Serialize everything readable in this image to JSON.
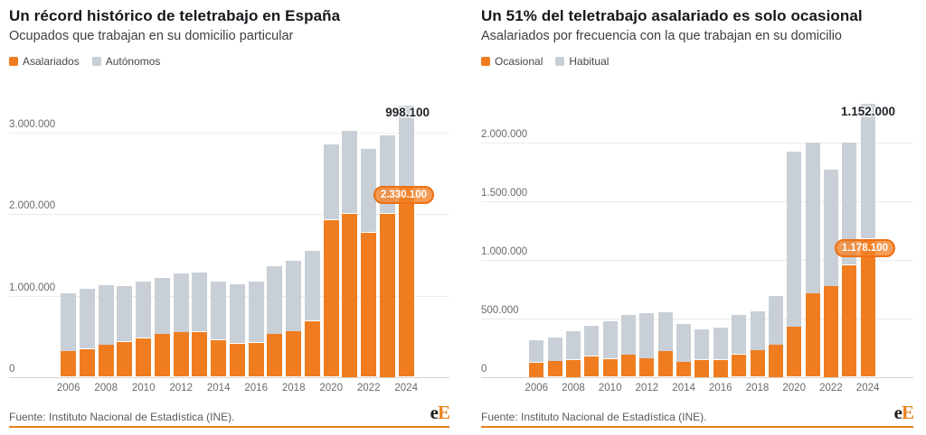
{
  "colors": {
    "orange": "#ef7d1f",
    "gray": "#c9cfd6",
    "annotation_dark": "#1f2229",
    "rule": "#e2811f",
    "logo_dark": "#1a1a1a",
    "logo_orange": "#e8821e"
  },
  "footer": {
    "source": "Fuente: Instituto Nacional de Estadística (INE).",
    "logo_first": "e",
    "logo_second": "E"
  },
  "chart_data": [
    {
      "type": "bar",
      "stacked": true,
      "title": "Un récord histórico de teletrabajo en España",
      "subtitle": "Ocupados que trabajan en su domicilio particular",
      "grid": true,
      "legend_position": "top",
      "categories": [
        2006,
        2007,
        2008,
        2009,
        2010,
        2011,
        2012,
        2013,
        2014,
        2015,
        2016,
        2017,
        2018,
        2019,
        2020,
        2021,
        2022,
        2023,
        2024
      ],
      "x_tick_labels": [
        "2006",
        "2008",
        "2010",
        "2012",
        "2014",
        "2016",
        "2018",
        "2020",
        "2022",
        "2024"
      ],
      "series": [
        {
          "name": "Asalariados",
          "color_key": "orange",
          "values": [
            320000,
            345000,
            395000,
            435000,
            480000,
            530000,
            550000,
            555000,
            455000,
            410000,
            420000,
            530000,
            560000,
            690000,
            1925000,
            2000000,
            1770000,
            2000000,
            2330100
          ]
        },
        {
          "name": "Autónomos",
          "color_key": "gray",
          "values": [
            710000,
            735000,
            735000,
            685000,
            690000,
            690000,
            720000,
            725000,
            715000,
            730000,
            750000,
            830000,
            870000,
            860000,
            930000,
            1020000,
            1030000,
            960000,
            998100
          ]
        }
      ],
      "y_ticks": [
        {
          "value": 0,
          "label": "0"
        },
        {
          "value": 1000000,
          "label": "1.000.000"
        },
        {
          "value": 2000000,
          "label": "2.000.000"
        },
        {
          "value": 3000000,
          "label": "3.000.000"
        }
      ],
      "ylim": [
        0,
        3400000
      ],
      "annotations": [
        {
          "text": "998.100",
          "series": "Autónomos",
          "year": 2024,
          "value": 998100,
          "style": "dark"
        },
        {
          "text": "2.330.100",
          "series": "Asalariados",
          "year": 2024,
          "value": 2330100,
          "style": "pill"
        }
      ]
    },
    {
      "type": "bar",
      "stacked": true,
      "title": "Un 51% del teletrabajo asalariado es solo ocasional",
      "subtitle": "Asalariados por frecuencia con la que trabajan en su domicilio",
      "grid": true,
      "legend_position": "top",
      "categories": [
        2006,
        2007,
        2008,
        2009,
        2010,
        2011,
        2012,
        2013,
        2014,
        2015,
        2016,
        2017,
        2018,
        2019,
        2020,
        2021,
        2022,
        2023,
        2024
      ],
      "x_tick_labels": [
        "2006",
        "2008",
        "2010",
        "2012",
        "2014",
        "2016",
        "2018",
        "2020",
        "2022",
        "2024"
      ],
      "series": [
        {
          "name": "Ocasional",
          "color_key": "orange",
          "values": [
            125000,
            135000,
            150000,
            180000,
            155000,
            190000,
            160000,
            220000,
            130000,
            150000,
            150000,
            195000,
            230000,
            275000,
            430000,
            715000,
            775000,
            955000,
            1178100
          ]
        },
        {
          "name": "Habitual",
          "color_key": "gray",
          "values": [
            190000,
            205000,
            245000,
            255000,
            320000,
            340000,
            385000,
            335000,
            325000,
            255000,
            270000,
            335000,
            330000,
            415000,
            1495000,
            1285000,
            995000,
            1045000,
            1152000
          ]
        }
      ],
      "y_ticks": [
        {
          "value": 0,
          "label": "0"
        },
        {
          "value": 500000,
          "label": "500.000"
        },
        {
          "value": 1000000,
          "label": "1.000.000"
        },
        {
          "value": 1500000,
          "label": "1.500.000"
        },
        {
          "value": 2000000,
          "label": "2.000.000"
        }
      ],
      "ylim": [
        0,
        2400000
      ],
      "annotations": [
        {
          "text": "1.152.000",
          "series": "Habitual",
          "year": 2024,
          "value": 1152000,
          "style": "dark"
        },
        {
          "text": "1.178.100",
          "series": "Ocasional",
          "year": 2024,
          "value": 1178100,
          "style": "pill"
        }
      ]
    }
  ]
}
